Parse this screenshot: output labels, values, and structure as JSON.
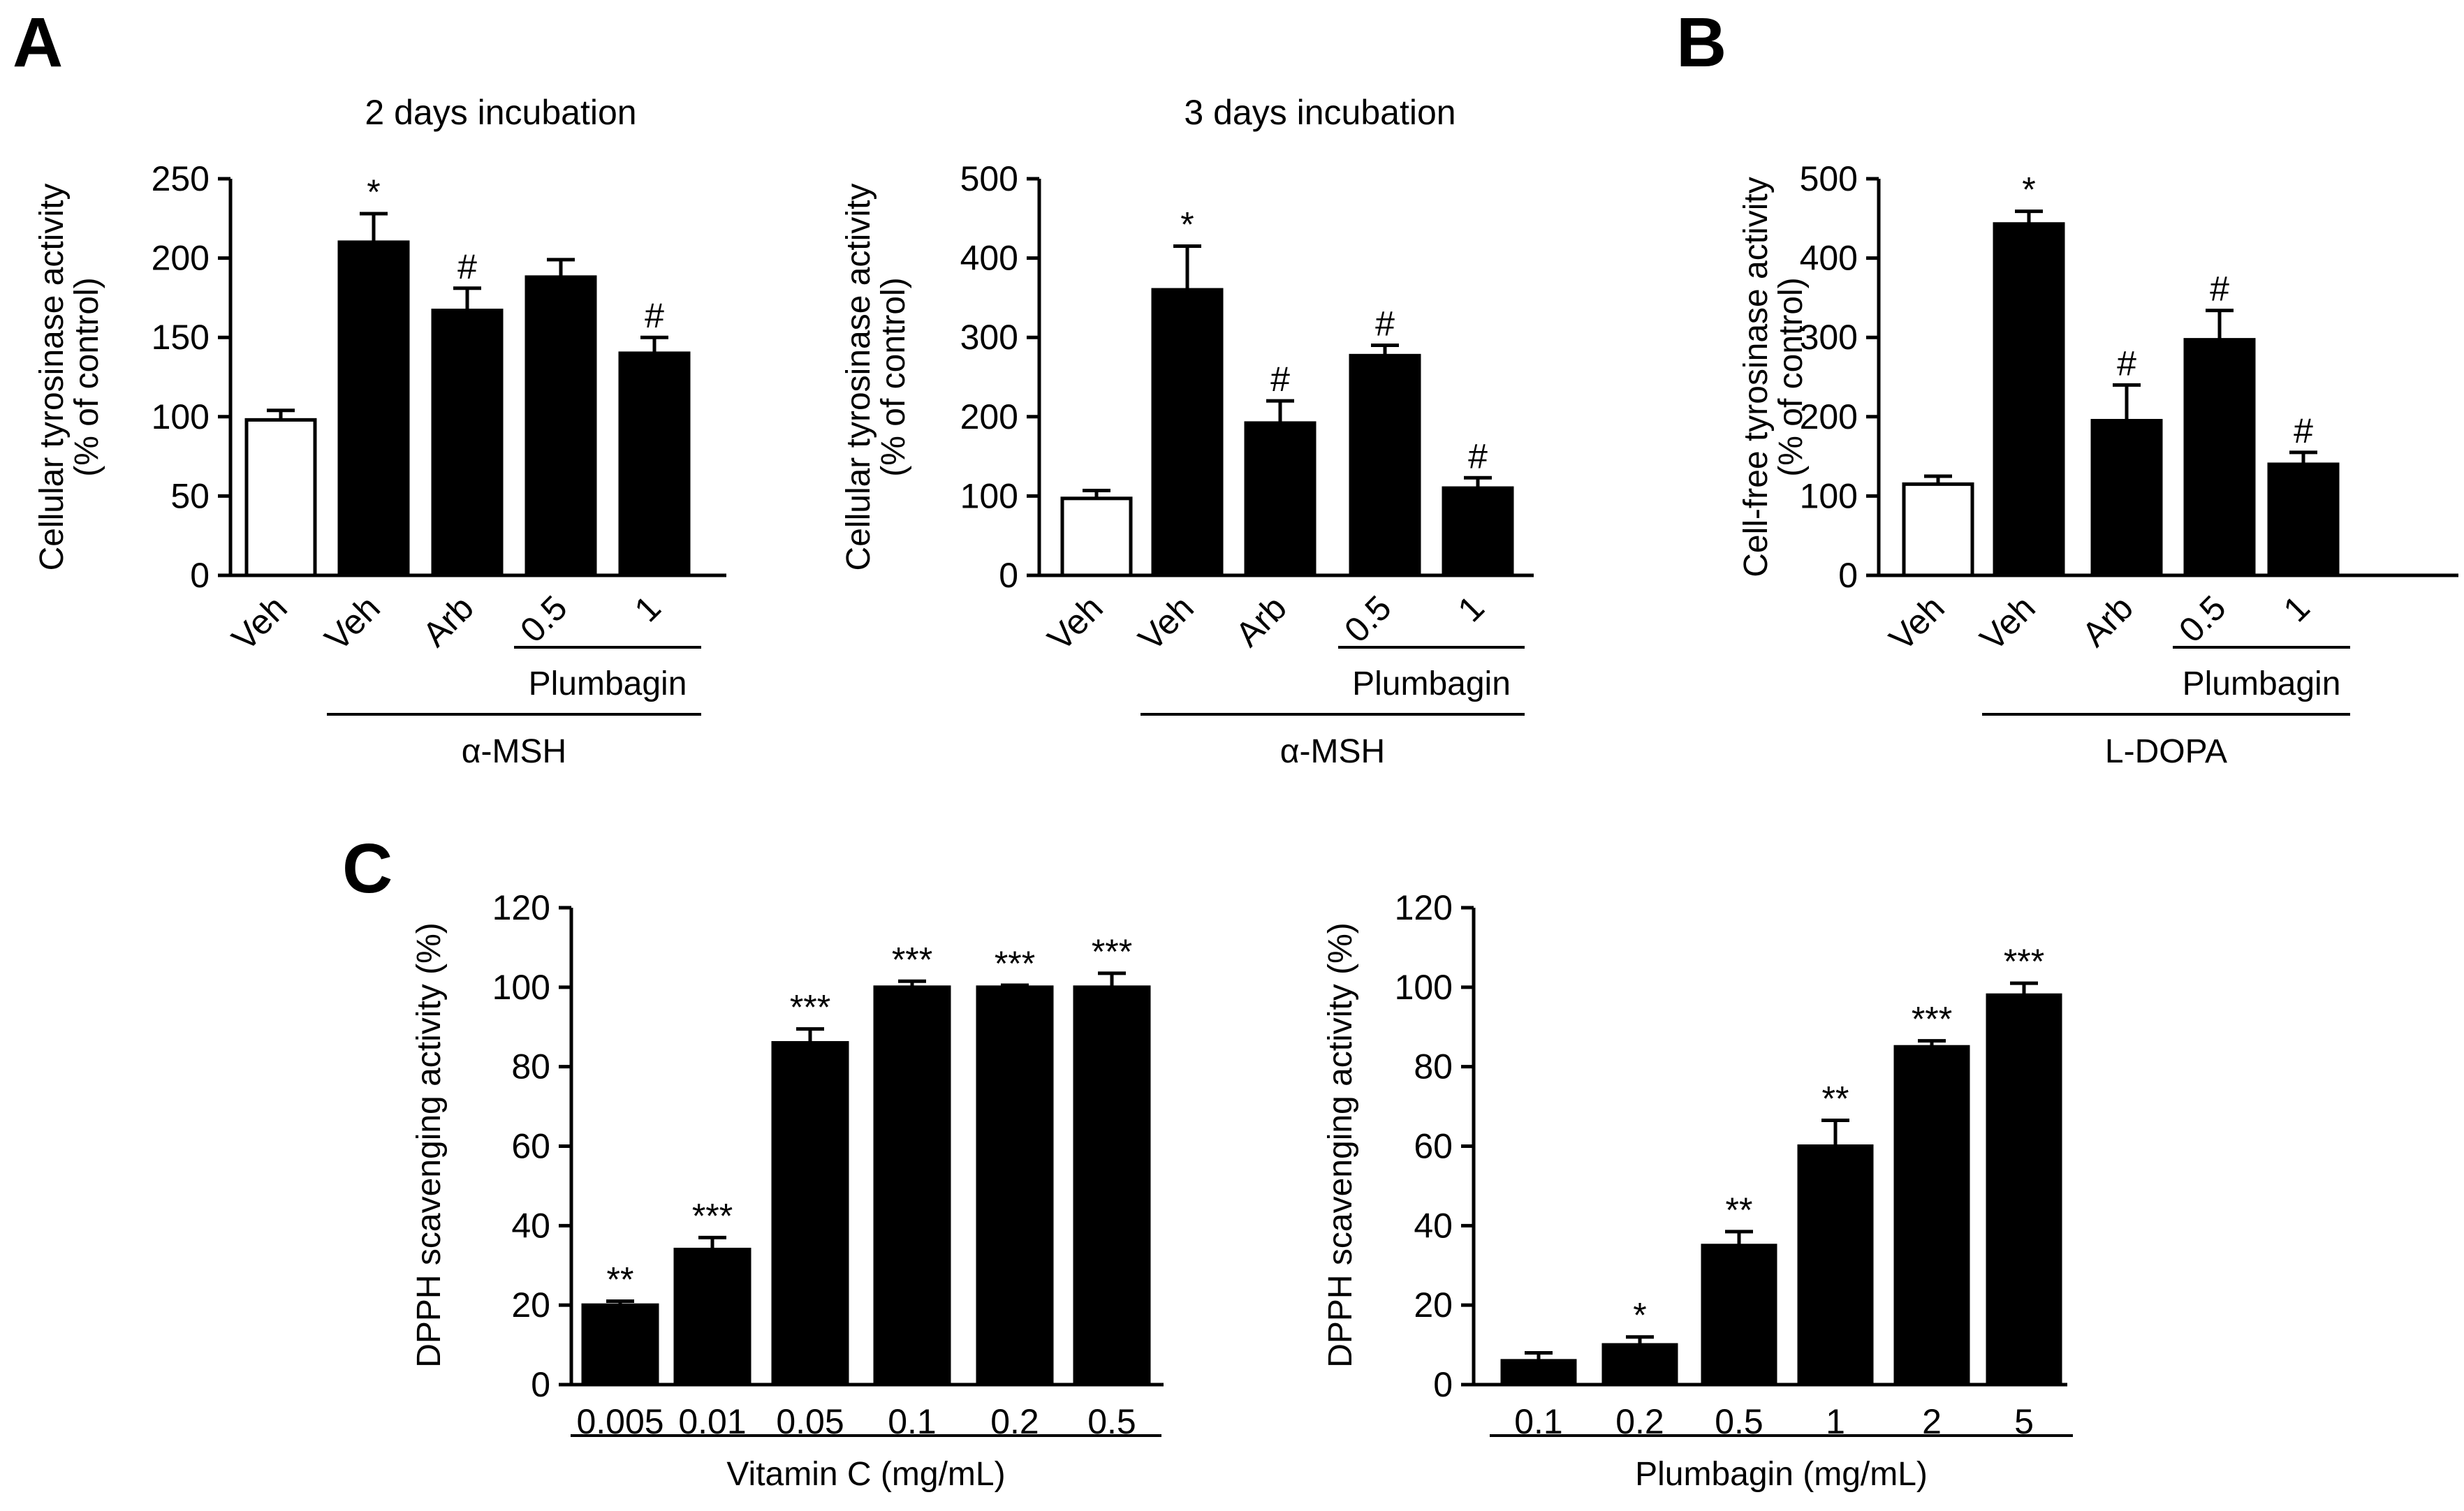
{
  "panels": {
    "a": "A",
    "b": "B",
    "c": "C"
  },
  "chart_data": [
    {
      "id": "a1",
      "type": "bar",
      "panel": "A",
      "title": "2 days incubation",
      "ylabel": [
        "Cellular tyrosinase activity",
        "(% of control)"
      ],
      "ylim": [
        0,
        250
      ],
      "yticks": [
        0,
        50,
        100,
        150,
        200,
        250
      ],
      "categories": [
        "Veh",
        "Veh",
        "Arb",
        "0.5",
        "1"
      ],
      "values": [
        98,
        210,
        167,
        188,
        140
      ],
      "errors": [
        6,
        18,
        14,
        11,
        10
      ],
      "fills": [
        "#ffffff",
        "#000000",
        "#000000",
        "#000000",
        "#000000"
      ],
      "marks": [
        "",
        "*",
        "#",
        "",
        "#"
      ],
      "groups": [
        {
          "label": "Plumbagin",
          "from": 3,
          "to": 4
        },
        {
          "label": "α-MSH",
          "from": 1,
          "to": 4
        }
      ]
    },
    {
      "id": "a2",
      "type": "bar",
      "panel": "A",
      "title": "3 days incubation",
      "ylabel": [
        "Cellular tyrosinase activity",
        "(% of control)"
      ],
      "ylim": [
        0,
        500
      ],
      "yticks": [
        0,
        100,
        200,
        300,
        400,
        500
      ],
      "categories": [
        "Veh",
        "Veh",
        "Arb",
        "0.5",
        "1"
      ],
      "values": [
        97,
        360,
        192,
        277,
        110
      ],
      "errors": [
        10,
        55,
        28,
        13,
        13
      ],
      "fills": [
        "#ffffff",
        "#000000",
        "#000000",
        "#000000",
        "#000000"
      ],
      "marks": [
        "",
        "*",
        "#",
        "#",
        "#"
      ],
      "groups": [
        {
          "label": "Plumbagin",
          "from": 3,
          "to": 4
        },
        {
          "label": "α-MSH",
          "from": 1,
          "to": 4
        }
      ]
    },
    {
      "id": "b",
      "type": "bar",
      "panel": "B",
      "title": "",
      "ylabel": [
        "Cell-free tyrosinase activity",
        "(% of control)"
      ],
      "ylim": [
        0,
        500
      ],
      "yticks": [
        0,
        100,
        200,
        300,
        400,
        500
      ],
      "categories": [
        "Veh",
        "Veh",
        "Arb",
        "0.5",
        "1"
      ],
      "values": [
        115,
        443,
        195,
        297,
        140
      ],
      "errors": [
        10,
        16,
        45,
        37,
        15
      ],
      "fills": [
        "#ffffff",
        "#000000",
        "#000000",
        "#000000",
        "#000000"
      ],
      "marks": [
        "",
        "*",
        "#",
        "#",
        "#"
      ],
      "groups": [
        {
          "label": "Plumbagin",
          "from": 3,
          "to": 4
        },
        {
          "label": "L-DOPA",
          "from": 1,
          "to": 4
        }
      ]
    },
    {
      "id": "c1",
      "type": "bar",
      "panel": "C",
      "title": "",
      "ylabel": [
        "DPPH scavenging activity (%)"
      ],
      "ylim": [
        0,
        120
      ],
      "yticks": [
        0,
        20,
        40,
        60,
        80,
        100,
        120
      ],
      "categories": [
        "0.005",
        "0.01",
        "0.05",
        "0.1",
        "0.2",
        "0.5"
      ],
      "values": [
        20,
        34,
        86,
        100,
        100,
        100
      ],
      "errors": [
        1,
        3,
        3.5,
        1.5,
        0.5,
        3.5
      ],
      "fills": [
        "#000000",
        "#000000",
        "#000000",
        "#000000",
        "#000000",
        "#000000"
      ],
      "marks": [
        "**",
        "***",
        "***",
        "***",
        "***",
        "***"
      ],
      "groups": [
        {
          "label": "Vitamin C (mg/mL)",
          "from": 0,
          "to": 5
        }
      ]
    },
    {
      "id": "c2",
      "type": "bar",
      "panel": "C",
      "title": "",
      "ylabel": [
        "DPPH scavenging activity (%)"
      ],
      "ylim": [
        0,
        120
      ],
      "yticks": [
        0,
        20,
        40,
        60,
        80,
        100,
        120
      ],
      "categories": [
        "0.1",
        "0.2",
        "0.5",
        "1",
        "2",
        "5"
      ],
      "values": [
        6,
        10,
        35,
        60,
        85,
        98
      ],
      "errors": [
        2,
        2,
        3.5,
        6.5,
        1.5,
        3
      ],
      "fills": [
        "#000000",
        "#000000",
        "#000000",
        "#000000",
        "#000000",
        "#000000"
      ],
      "marks": [
        "",
        "*",
        "**",
        "**",
        "***",
        "***"
      ],
      "groups": [
        {
          "label": "Plumbagin  (mg/mL)",
          "from": 0,
          "to": 5
        }
      ]
    }
  ]
}
